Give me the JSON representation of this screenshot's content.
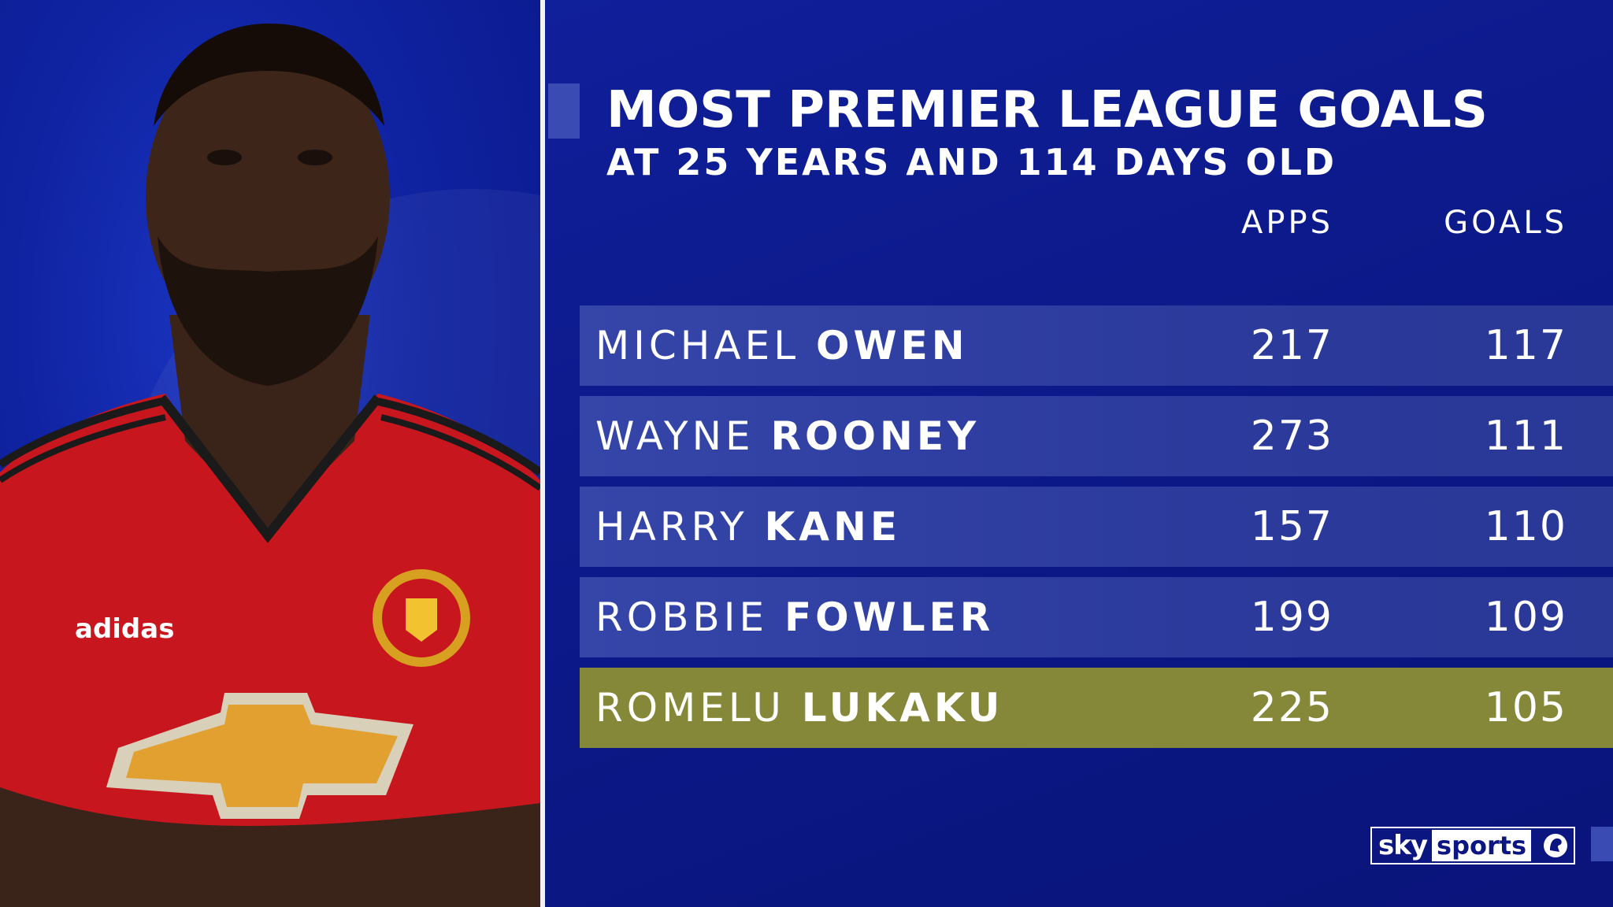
{
  "header": {
    "title": "MOST PREMIER LEAGUE GOALS",
    "subtitle": "AT 25 YEARS AND 114 DAYS OLD"
  },
  "columns": {
    "apps": "APPS",
    "goals": "GOALS"
  },
  "rows": [
    {
      "first": "MICHAEL",
      "last": "OWEN",
      "apps": "217",
      "goals": "117",
      "highlight": false
    },
    {
      "first": "WAYNE",
      "last": "ROONEY",
      "apps": "273",
      "goals": "111",
      "highlight": false
    },
    {
      "first": "HARRY",
      "last": "KANE",
      "apps": "157",
      "goals": "110",
      "highlight": false
    },
    {
      "first": "ROBBIE",
      "last": "FOWLER",
      "apps": "199",
      "goals": "109",
      "highlight": false
    },
    {
      "first": "ROMELU",
      "last": "LUKAKU",
      "apps": "225",
      "goals": "105",
      "highlight": true
    }
  ],
  "logo": {
    "sky": "sky",
    "sports": "sports"
  },
  "photo": {
    "shirt_sponsor": "adidas",
    "icon": "player-portrait"
  },
  "colors": {
    "background": "#0b1886",
    "row": "#2f3fa2",
    "highlight": "#858838",
    "shirt": "#c8161e"
  }
}
